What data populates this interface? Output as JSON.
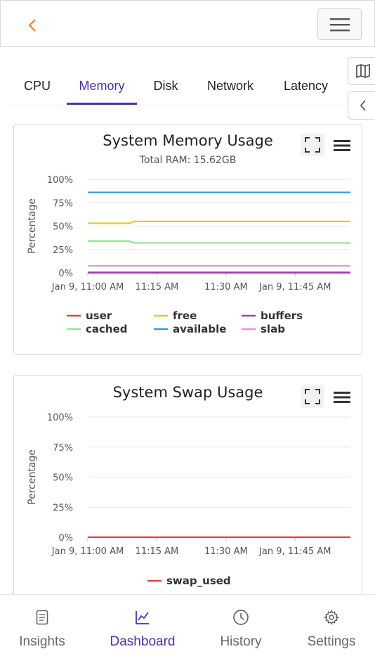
{
  "header": {
    "back_icon": "chevron-left-icon",
    "menu_icon": "hamburger-icon",
    "accent": "#f07b23"
  },
  "side_buttons": [
    {
      "icon": "map-icon"
    },
    {
      "icon": "chevron-left-icon"
    }
  ],
  "tabs": [
    {
      "label": "CPU",
      "active": false
    },
    {
      "label": "Memory",
      "active": true
    },
    {
      "label": "Disk",
      "active": false
    },
    {
      "label": "Network",
      "active": false
    },
    {
      "label": "Latency",
      "active": false
    }
  ],
  "memory_card": {
    "title": "System Memory Usage",
    "subtitle": "Total RAM: 15.62GB"
  },
  "swap_card": {
    "title": "System Swap Usage"
  },
  "chart_data": [
    {
      "type": "line",
      "title": "System Memory Usage",
      "subtitle": "Total RAM: 15.62GB",
      "ylabel": "Percentage",
      "ylim": [
        0,
        100
      ],
      "yticks": [
        "100%",
        "75%",
        "50%",
        "25%",
        "0%"
      ],
      "xticks": [
        "Jan 9, 11:00 AM",
        "11:15 AM",
        "11:30 AM",
        "Jan 9, 11:45 AM"
      ],
      "xlim": [
        0,
        57
      ],
      "xtick_values": [
        0,
        15,
        30,
        45
      ],
      "x": [
        0,
        9,
        10,
        17,
        24,
        31,
        38,
        45,
        52,
        57
      ],
      "legend": "bottom",
      "grid": true,
      "series": [
        {
          "name": "user",
          "color": "#e8413c",
          "values": [
            0,
            0,
            0,
            0,
            0,
            0,
            0,
            0,
            0,
            0
          ]
        },
        {
          "name": "free",
          "color": "#f5c518",
          "values": [
            53,
            53,
            55,
            55,
            55,
            55,
            55,
            55,
            55,
            55
          ]
        },
        {
          "name": "buffers",
          "color": "#9b3fb5",
          "values": [
            0.5,
            0.5,
            0.5,
            0.5,
            0.5,
            0.5,
            0.5,
            0.5,
            0.5,
            0.5
          ]
        },
        {
          "name": "cached",
          "color": "#8ee88a",
          "values": [
            34,
            34,
            32,
            32,
            32,
            32,
            32,
            32,
            32,
            32
          ]
        },
        {
          "name": "available",
          "color": "#3b99e0",
          "values": [
            86,
            86,
            86,
            86,
            86,
            86,
            86,
            86,
            86,
            86
          ]
        },
        {
          "name": "slab",
          "color": "#f78fc9",
          "values": [
            7.5,
            7.5,
            7.5,
            7.5,
            7.5,
            7.5,
            7.5,
            7.5,
            7.5,
            7.5
          ]
        }
      ]
    },
    {
      "type": "line",
      "title": "System Swap Usage",
      "ylabel": "Percentage",
      "ylim": [
        0,
        100
      ],
      "yticks": [
        "100%",
        "75%",
        "50%",
        "25%",
        "0%"
      ],
      "xticks": [
        "Jan 9, 11:00 AM",
        "11:15 AM",
        "11:30 AM",
        "Jan 9, 11:45 AM"
      ],
      "xlim": [
        0,
        57
      ],
      "xtick_values": [
        0,
        15,
        30,
        45
      ],
      "x": [
        0,
        57
      ],
      "legend": "bottom",
      "grid": true,
      "series": [
        {
          "name": "swap_used",
          "color": "#e8413c",
          "values": [
            0,
            0
          ]
        }
      ]
    }
  ],
  "bottom_nav": [
    {
      "label": "Insights",
      "icon": "document-icon",
      "active": false
    },
    {
      "label": "Dashboard",
      "icon": "chart-line-icon",
      "active": true
    },
    {
      "label": "History",
      "icon": "clock-icon",
      "active": false
    },
    {
      "label": "Settings",
      "icon": "gear-icon",
      "active": false
    }
  ]
}
